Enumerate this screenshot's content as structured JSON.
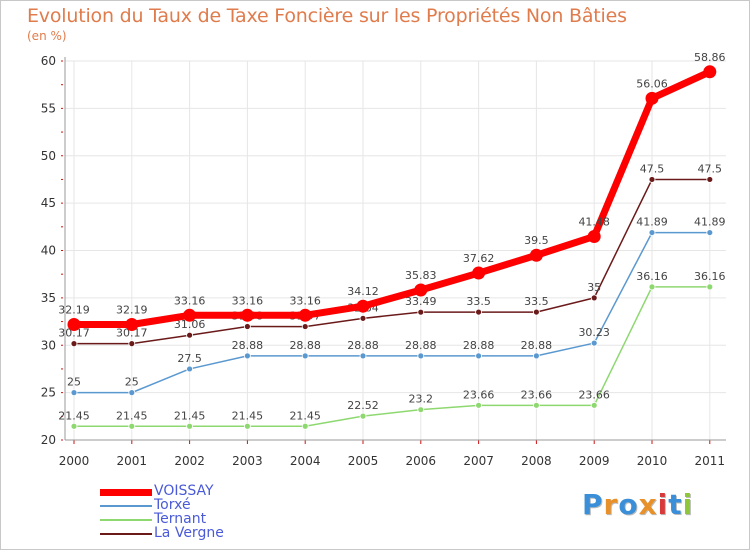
{
  "chart_data": {
    "type": "line",
    "title": "Evolution du Taux de Taxe Foncière sur les Propriétés Non Bâties",
    "ylabel": "(en %)",
    "xlabel": "",
    "categories": [
      "2000",
      "2001",
      "2002",
      "2003",
      "2004",
      "2005",
      "2006",
      "2007",
      "2008",
      "2009",
      "2010",
      "2011"
    ],
    "ylim": [
      20,
      60
    ],
    "yticks": [
      "20",
      "25",
      "30",
      "35",
      "40",
      "45",
      "50",
      "55",
      "60"
    ],
    "series": [
      {
        "name": "VOISSAY",
        "color": "#ff0000",
        "values": [
          32.19,
          32.19,
          33.16,
          33.16,
          33.16,
          34.12,
          35.83,
          37.62,
          39.5,
          41.48,
          56.06,
          58.86
        ],
        "labels": [
          "32.19",
          "32.19",
          "33.16",
          "33.16",
          "33.16",
          "34.12",
          "35.83",
          "37.62",
          "39.5",
          "41.48",
          "56.06",
          "58.86"
        ]
      },
      {
        "name": "Torxé",
        "color": "#5a98d0",
        "values": [
          25,
          25,
          27.5,
          28.88,
          28.88,
          28.88,
          28.88,
          28.88,
          28.88,
          30.23,
          41.89,
          41.89
        ],
        "labels": [
          "25",
          "25",
          "27.5",
          "28.88",
          "28.88",
          "28.88",
          "28.88",
          "28.88",
          "28.88",
          "30.23",
          "41.89",
          "41.89"
        ]
      },
      {
        "name": "Ternant",
        "color": "#8ed870",
        "values": [
          21.45,
          21.45,
          21.45,
          21.45,
          21.45,
          22.52,
          23.2,
          23.66,
          23.66,
          23.66,
          36.16,
          36.16
        ],
        "labels": [
          "21.45",
          "21.45",
          "21.45",
          "21.45",
          "21.45",
          "22.52",
          "23.2",
          "23.66",
          "23.66",
          "23.66",
          "36.16",
          "36.16"
        ]
      },
      {
        "name": "La Vergne",
        "color": "#6b1a1a",
        "values": [
          30.17,
          30.17,
          31.06,
          31.98,
          31.97,
          32.84,
          33.49,
          33.5,
          33.5,
          35,
          47.5,
          47.5
        ],
        "labels": [
          "30.17",
          "30.17",
          "31.06",
          "31.98",
          "31.97",
          "32.84",
          "33.49",
          "33.5",
          "33.5",
          "35",
          "47.5",
          "47.5"
        ]
      }
    ]
  },
  "branding": {
    "letters": [
      "P",
      "r",
      "o",
      "x",
      "i",
      "t",
      "i"
    ],
    "colors": [
      "#3a8fd8",
      "#e8902a",
      "#3a8fd8",
      "#e8902a",
      "#d83a3a",
      "#3a8fd8",
      "#8ec83a"
    ]
  }
}
